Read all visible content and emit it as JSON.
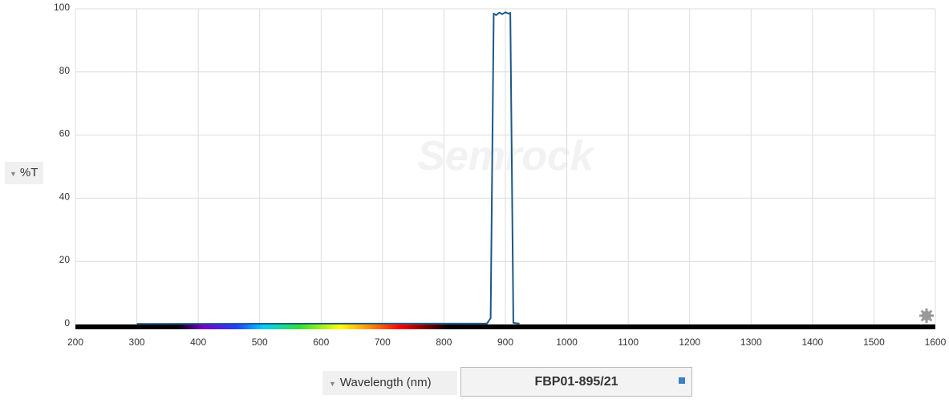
{
  "chart_data": {
    "type": "line",
    "y_label": "%T",
    "x_label": "Wavelength (nm)",
    "filter_name": "FBP01-895/21",
    "watermark": "Semrock",
    "xlim": [
      200,
      1600
    ],
    "xticks": [
      200,
      300,
      400,
      500,
      600,
      700,
      800,
      900,
      1000,
      1100,
      1200,
      1300,
      1400,
      1500,
      1600
    ],
    "ylim": [
      0,
      100
    ],
    "yticks": [
      0,
      20,
      40,
      60,
      80,
      100
    ],
    "grid": true,
    "series": [
      {
        "color": "#1c5887",
        "x": [
          300,
          870,
          876,
          879,
          881,
          885,
          890,
          895,
          900,
          905,
          908,
          910,
          913,
          923
        ],
        "values": [
          0.2,
          0.3,
          2,
          60,
          98.5,
          98,
          98.8,
          98.3,
          98.9,
          98.5,
          98.7,
          60,
          0.5,
          0.3
        ]
      }
    ]
  }
}
